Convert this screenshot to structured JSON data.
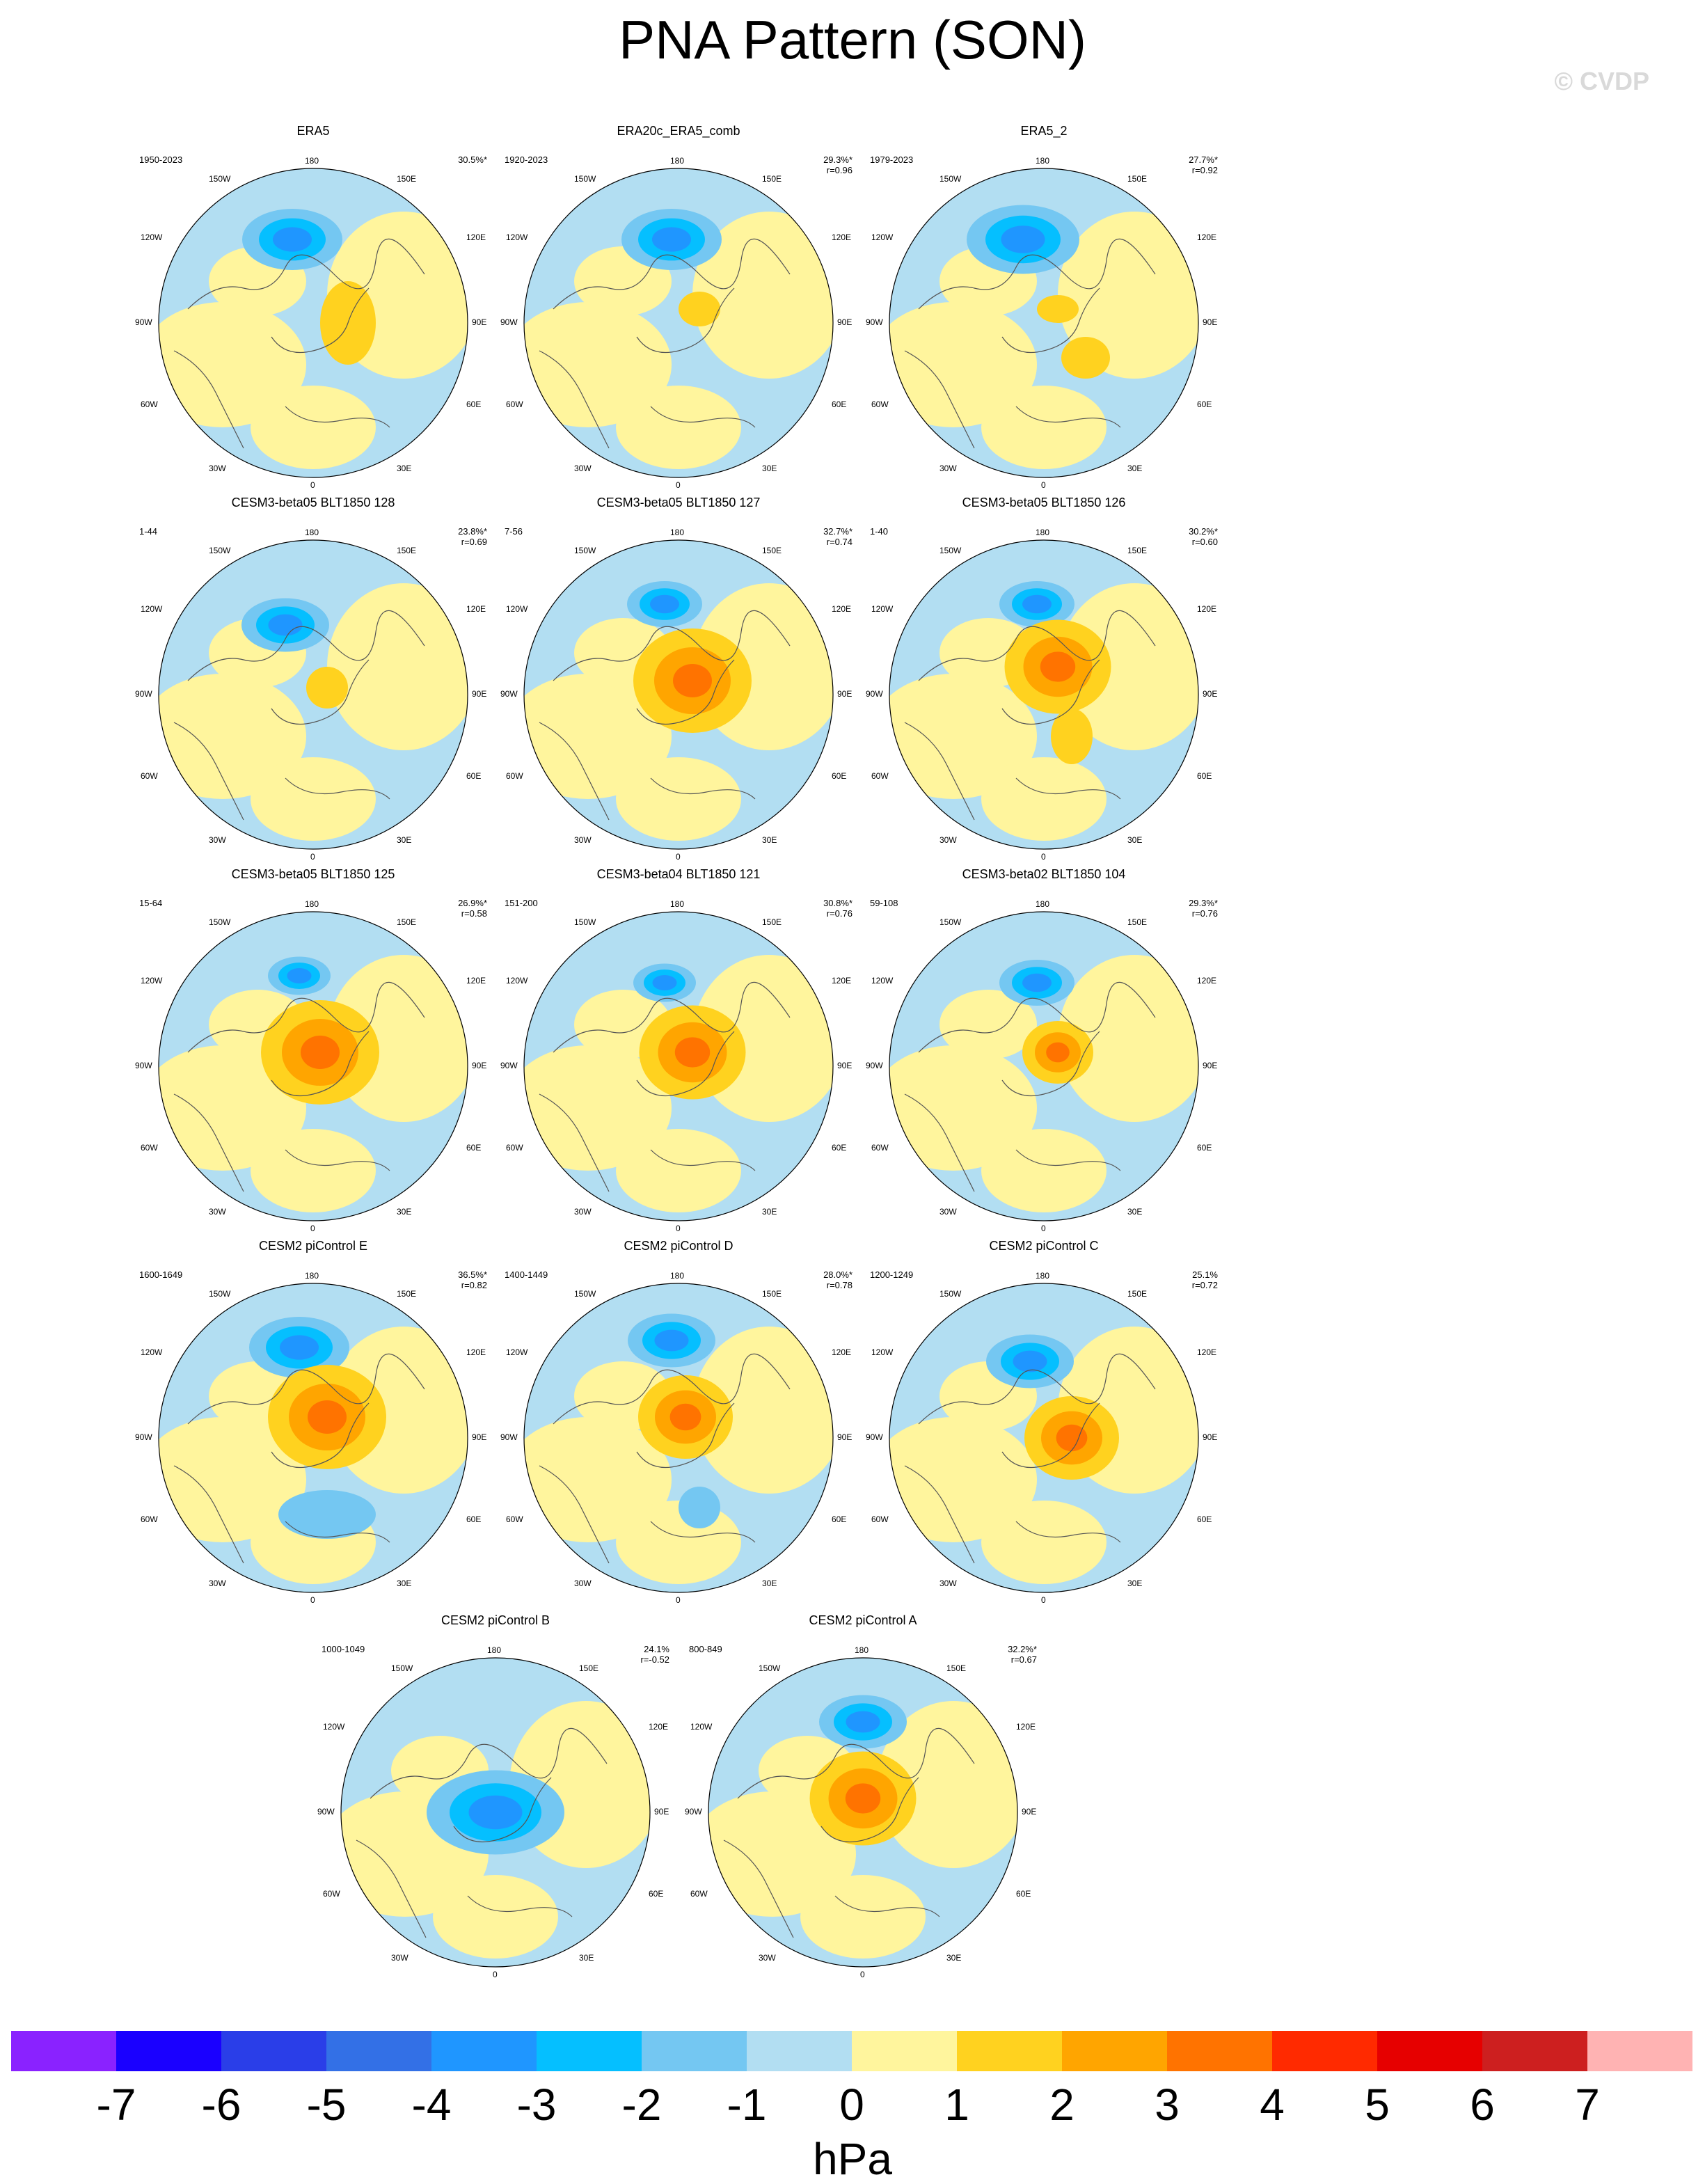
{
  "title": "PNA Pattern (SON)",
  "watermark": "© CVDP",
  "map_labels": {
    "top": "180",
    "bottom": "0",
    "left": "90W",
    "right": "90E",
    "ul1": "150W",
    "ul2": "120W",
    "ur1": "150E",
    "ur2": "120E",
    "ll1": "60W",
    "ll2": "30W",
    "lr1": "60E",
    "lr2": "30E"
  },
  "panels": [
    {
      "title": "ERA5",
      "years": "1950-2023",
      "pct": "30.5%*",
      "r": ""
    },
    {
      "title": "ERA20c_ERA5_comb",
      "years": "1920-2023",
      "pct": "29.3%*",
      "r": "r=0.96"
    },
    {
      "title": "ERA5_2",
      "years": "1979-2023",
      "pct": "27.7%*",
      "r": "r=0.92"
    },
    {
      "title": "CESM3-beta05 BLT1850 128",
      "years": "1-44",
      "pct": "23.8%*",
      "r": "r=0.69"
    },
    {
      "title": "CESM3-beta05 BLT1850 127",
      "years": "7-56",
      "pct": "32.7%*",
      "r": "r=0.74"
    },
    {
      "title": "CESM3-beta05 BLT1850 126",
      "years": "1-40",
      "pct": "30.2%*",
      "r": "r=0.60"
    },
    {
      "title": "CESM3-beta05 BLT1850 125",
      "years": "15-64",
      "pct": "26.9%*",
      "r": "r=0.58"
    },
    {
      "title": "CESM3-beta04 BLT1850 121",
      "years": "151-200",
      "pct": "30.8%*",
      "r": "r=0.76"
    },
    {
      "title": "CESM3-beta02 BLT1850 104",
      "years": "59-108",
      "pct": "29.3%*",
      "r": "r=0.76"
    },
    {
      "title": "CESM2 piControl E",
      "years": "1600-1649",
      "pct": "36.5%*",
      "r": "r=0.82"
    },
    {
      "title": "CESM2 piControl D",
      "years": "1400-1449",
      "pct": "28.0%*",
      "r": "r=0.78"
    },
    {
      "title": "CESM2 piControl C",
      "years": "1200-1249",
      "pct": "25.1%",
      "r": "r=0.72"
    },
    {
      "title": "CESM2 piControl B",
      "years": "1000-1049",
      "pct": "24.1%",
      "r": "r=-0.52"
    },
    {
      "title": "CESM2 piControl A",
      "years": "800-849",
      "pct": "32.2%*",
      "r": "r=0.67"
    }
  ],
  "colorbar": {
    "colors": [
      "#8a22ff",
      "#1a00ff",
      "#2a3ee8",
      "#3370e6",
      "#1f96ff",
      "#05bfff",
      "#74c7f2",
      "#b2def2",
      "#fff59d",
      "#ffd21f",
      "#ffa500",
      "#ff7300",
      "#ff2a00",
      "#e60000",
      "#cd1f1f",
      "#ffb3b3"
    ],
    "ticks": [
      "-7",
      "-6",
      "-5",
      "-4",
      "-3",
      "-2",
      "-1",
      "0",
      "1",
      "2",
      "3",
      "4",
      "5",
      "6",
      "7"
    ],
    "unit": "hPa"
  }
}
